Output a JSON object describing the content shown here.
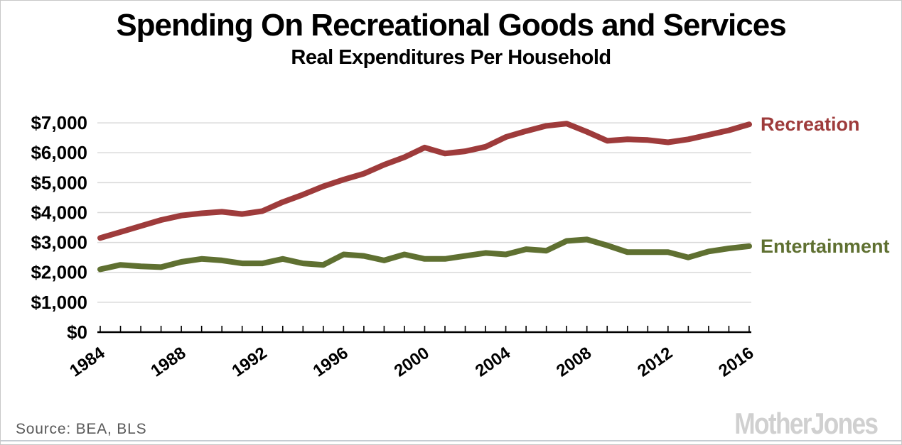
{
  "header": {
    "title": "Spending On Recreational Goods and Services",
    "subtitle": "Real Expenditures Per Household"
  },
  "footer": {
    "source": "Source:  BEA,  BLS",
    "brand": "MotherJones"
  },
  "chart_data": {
    "type": "line",
    "title": "Spending On Recreational Goods and Services",
    "subtitle": "Real Expenditures Per Household",
    "xlabel": "",
    "ylabel": "",
    "x": [
      1984,
      1985,
      1986,
      1987,
      1988,
      1989,
      1990,
      1991,
      1992,
      1993,
      1994,
      1995,
      1996,
      1997,
      1998,
      1999,
      2000,
      2001,
      2002,
      2003,
      2004,
      2005,
      2006,
      2007,
      2008,
      2009,
      2010,
      2011,
      2012,
      2013,
      2014,
      2015,
      2016
    ],
    "series": [
      {
        "name": "Recreation",
        "color": "#9e3b3b",
        "values": [
          3150,
          3350,
          3550,
          3750,
          3900,
          3975,
          4025,
          3950,
          4050,
          4350,
          4600,
          4875,
          5100,
          5300,
          5600,
          5850,
          6175,
          5975,
          6050,
          6200,
          6525,
          6725,
          6900,
          6975,
          6700,
          6400,
          6450,
          6425,
          6350,
          6450,
          6600,
          6750,
          6950
        ]
      },
      {
        "name": "Entertainment",
        "color": "#5f7031",
        "values": [
          2100,
          2250,
          2200,
          2175,
          2350,
          2450,
          2400,
          2300,
          2300,
          2450,
          2300,
          2250,
          2600,
          2550,
          2400,
          2600,
          2450,
          2450,
          2550,
          2650,
          2600,
          2775,
          2725,
          3050,
          3100,
          2900,
          2675,
          2675,
          2675,
          2500,
          2700,
          2800,
          2875
        ]
      }
    ],
    "ylim": [
      0,
      7000
    ],
    "ytick_step": 1000,
    "ytick_labels": [
      "$0",
      "$1,000",
      "$2,000",
      "$3,000",
      "$4,000",
      "$5,000",
      "$6,000",
      "$7,000"
    ],
    "xtick_labels": [
      "1984",
      "1988",
      "1992",
      "1996",
      "2000",
      "2004",
      "2008",
      "2012",
      "2016"
    ],
    "grid": true,
    "grid_color": "#d9d9d9",
    "axis_color": "#000000",
    "legend_position": "end-of-line"
  }
}
